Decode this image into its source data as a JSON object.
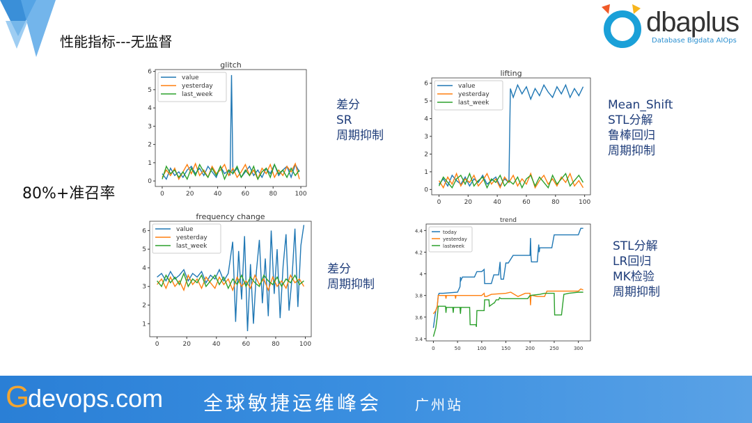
{
  "slide": {
    "title": "性能指标---无监督",
    "recall": "80%+准召率"
  },
  "logo": {
    "name": "dbaplus",
    "text": "dbaplus",
    "subtitle": "Database Bigdata AIOps"
  },
  "banner": {
    "g": "G",
    "site": "devops.com",
    "event": "全球敏捷运维峰会",
    "city": "广州站"
  },
  "methods": {
    "glitch": [
      "差分",
      "SR",
      "周期抑制"
    ],
    "lifting": [
      "Mean_Shift",
      "STL分解",
      "鲁棒回归",
      "周期抑制"
    ],
    "frequency": [
      "差分",
      "周期抑制"
    ],
    "trend": [
      "STL分解",
      "LR回归",
      "MK检验",
      "周期抑制"
    ]
  },
  "colors": {
    "blue": "#1f77b4",
    "orange": "#ff7f0e",
    "green": "#2ca02c",
    "text": "#1f3d7a",
    "banner": "#2a7fd6"
  },
  "chart_data": [
    {
      "id": "glitch",
      "type": "line",
      "title": "glitch",
      "xlim": [
        -5,
        104
      ],
      "ylim": [
        -0.3,
        6.1
      ],
      "xticks": [
        0,
        20,
        40,
        60,
        80,
        100
      ],
      "yticks": [
        0,
        1,
        2,
        3,
        4,
        5,
        6
      ],
      "legend": "top-left",
      "series": [
        {
          "name": "value",
          "color": "#1f77b4",
          "x": [
            0,
            3,
            6,
            9,
            12,
            15,
            18,
            21,
            24,
            27,
            30,
            33,
            36,
            39,
            42,
            45,
            48,
            49,
            50,
            51,
            54,
            57,
            60,
            63,
            66,
            69,
            72,
            75,
            78,
            81,
            84,
            87,
            90,
            93,
            96,
            99
          ],
          "y": [
            0.4,
            0.1,
            0.7,
            0.3,
            0.5,
            0.2,
            0.6,
            0.8,
            0.4,
            0.7,
            0.3,
            0.8,
            0.5,
            0.2,
            0.8,
            0.4,
            0.6,
            0.3,
            5.8,
            0.4,
            0.7,
            0.2,
            0.5,
            0.8,
            0.3,
            0.6,
            0.2,
            0.7,
            0.4,
            0.9,
            0.3,
            0.6,
            0.8,
            0.2,
            0.9,
            0.5
          ]
        },
        {
          "name": "yesterday",
          "color": "#ff7f0e",
          "x": [
            0,
            3,
            6,
            9,
            12,
            15,
            18,
            21,
            24,
            27,
            30,
            33,
            36,
            39,
            42,
            45,
            48,
            51,
            54,
            57,
            60,
            63,
            66,
            69,
            72,
            75,
            78,
            81,
            84,
            87,
            90,
            93,
            96,
            99
          ],
          "y": [
            0.2,
            0.6,
            0.3,
            0.7,
            0.1,
            0.5,
            0.9,
            0.4,
            0.95,
            0.3,
            0.6,
            0.2,
            0.8,
            0.4,
            0.6,
            0.9,
            0.3,
            0.7,
            0.2,
            0.5,
            0.9,
            0.3,
            0.6,
            0.1,
            0.7,
            0.4,
            0.9,
            0.2,
            0.6,
            0.3,
            0.8,
            0.5,
            0.95,
            0.1
          ]
        },
        {
          "name": "last_week",
          "color": "#2ca02c",
          "x": [
            0,
            3,
            6,
            9,
            12,
            15,
            18,
            21,
            24,
            27,
            30,
            33,
            36,
            39,
            42,
            45,
            48,
            51,
            54,
            57,
            60,
            63,
            66,
            69,
            72,
            75,
            78,
            81,
            84,
            87,
            90,
            93,
            96,
            99
          ],
          "y": [
            0.1,
            0.8,
            0.4,
            0.6,
            0.2,
            0.5,
            0.1,
            0.7,
            0.3,
            0.9,
            0.5,
            0.2,
            0.7,
            0.3,
            0.8,
            0.1,
            0.6,
            0.4,
            0.8,
            0.2,
            0.6,
            0.3,
            0.8,
            0.1,
            0.5,
            0.7,
            0.2,
            0.9,
            0.4,
            0.6,
            0.2,
            0.7,
            0.3,
            0.6
          ]
        }
      ]
    },
    {
      "id": "lifting",
      "type": "line",
      "title": "lifting",
      "xlim": [
        -5,
        104
      ],
      "ylim": [
        -0.3,
        6.3
      ],
      "xticks": [
        0,
        20,
        40,
        60,
        80,
        100
      ],
      "yticks": [
        0,
        1,
        2,
        3,
        4,
        5,
        6
      ],
      "legend": "top-left",
      "series": [
        {
          "name": "value",
          "color": "#1f77b4",
          "x": [
            0,
            3,
            6,
            9,
            12,
            15,
            18,
            21,
            24,
            27,
            30,
            33,
            36,
            39,
            42,
            45,
            48,
            49,
            51,
            54,
            57,
            60,
            63,
            66,
            69,
            72,
            75,
            78,
            81,
            84,
            87,
            90,
            93,
            96,
            99
          ],
          "y": [
            0.3,
            0.6,
            0.2,
            0.8,
            0.5,
            0.3,
            0.7,
            0.2,
            0.6,
            0.4,
            0.8,
            0.3,
            0.5,
            0.7,
            0.2,
            0.6,
            0.4,
            5.7,
            5.2,
            5.9,
            5.4,
            5.8,
            5.1,
            5.7,
            5.3,
            5.9,
            5.5,
            5.2,
            5.8,
            5.4,
            5.9,
            5.2,
            5.7,
            5.3,
            5.8
          ]
        },
        {
          "name": "yesterday",
          "color": "#ff7f0e",
          "x": [
            0,
            3,
            6,
            9,
            12,
            15,
            18,
            21,
            24,
            27,
            30,
            33,
            36,
            39,
            42,
            45,
            48,
            51,
            54,
            57,
            60,
            63,
            66,
            69,
            72,
            75,
            78,
            81,
            84,
            87,
            90,
            93,
            96,
            99
          ],
          "y": [
            0.5,
            0.1,
            0.7,
            0.3,
            0.9,
            0.2,
            0.6,
            0.4,
            0.8,
            0.2,
            0.5,
            0.9,
            0.3,
            0.6,
            0.1,
            0.7,
            0.4,
            0.8,
            0.2,
            0.6,
            0.3,
            0.9,
            0.1,
            0.5,
            0.8,
            0.3,
            0.6,
            0.2,
            0.7,
            0.4,
            0.9,
            0.2,
            0.5,
            0.1
          ]
        },
        {
          "name": "last_week",
          "color": "#2ca02c",
          "x": [
            0,
            3,
            6,
            9,
            12,
            15,
            18,
            21,
            24,
            27,
            30,
            33,
            36,
            39,
            42,
            45,
            48,
            51,
            54,
            57,
            60,
            63,
            66,
            69,
            72,
            75,
            78,
            81,
            84,
            87,
            90,
            93,
            96,
            99
          ],
          "y": [
            0.2,
            0.7,
            0.4,
            0.1,
            0.6,
            0.8,
            0.3,
            0.9,
            0.2,
            0.5,
            0.7,
            0.1,
            0.6,
            0.4,
            0.8,
            0.2,
            0.5,
            0.3,
            0.7,
            0.1,
            0.6,
            0.8,
            0.2,
            0.7,
            0.4,
            0.1,
            0.8,
            0.3,
            0.6,
            0.9,
            0.2,
            0.5,
            0.8,
            0.4
          ]
        }
      ]
    },
    {
      "id": "frequency",
      "type": "line",
      "title": "frequency change",
      "xlim": [
        -5,
        104
      ],
      "ylim": [
        0.3,
        6.5
      ],
      "xticks": [
        0,
        20,
        40,
        60,
        80,
        100
      ],
      "yticks": [
        1,
        2,
        3,
        4,
        5,
        6
      ],
      "legend": "top-left",
      "series": [
        {
          "name": "value",
          "color": "#1f77b4",
          "x": [
            0,
            3,
            6,
            9,
            12,
            15,
            18,
            21,
            24,
            27,
            30,
            33,
            36,
            39,
            42,
            45,
            48,
            51,
            53,
            55,
            57,
            59,
            61,
            63,
            65,
            67,
            69,
            71,
            73,
            75,
            77,
            79,
            81,
            83,
            85,
            87,
            89,
            91,
            93,
            95,
            97,
            99
          ],
          "y": [
            3.5,
            3.7,
            3.3,
            3.8,
            3.4,
            3.6,
            3.9,
            3.3,
            3.7,
            3.5,
            3.8,
            3.2,
            3.6,
            3.4,
            3.9,
            3.3,
            3.7,
            5.4,
            1.1,
            4.9,
            2.3,
            5.7,
            0.6,
            4.2,
            1.0,
            3.8,
            5.5,
            2.1,
            4.5,
            1.4,
            6.0,
            2.6,
            5.0,
            1.3,
            4.1,
            5.8,
            1.7,
            3.4,
            6.1,
            1.9,
            5.2,
            6.3
          ]
        },
        {
          "name": "yesterday",
          "color": "#ff7f0e",
          "x": [
            0,
            3,
            6,
            9,
            12,
            15,
            18,
            21,
            24,
            27,
            30,
            33,
            36,
            39,
            42,
            45,
            48,
            51,
            54,
            57,
            60,
            63,
            66,
            69,
            72,
            75,
            78,
            81,
            84,
            87,
            90,
            93,
            96,
            99
          ],
          "y": [
            3.1,
            3.4,
            2.9,
            3.5,
            3.0,
            3.3,
            2.8,
            3.6,
            3.1,
            3.4,
            2.9,
            3.5,
            3.2,
            2.9,
            3.5,
            3.1,
            3.4,
            2.8,
            3.5,
            3.0,
            3.3,
            2.9,
            3.6,
            3.1,
            3.4,
            2.8,
            3.5,
            3.0,
            3.3,
            2.9,
            3.6,
            3.2,
            3.4,
            3.0
          ]
        },
        {
          "name": "last_week",
          "color": "#2ca02c",
          "x": [
            0,
            3,
            6,
            9,
            12,
            15,
            18,
            21,
            24,
            27,
            30,
            33,
            36,
            39,
            42,
            45,
            48,
            51,
            54,
            57,
            60,
            63,
            66,
            69,
            72,
            75,
            78,
            81,
            84,
            87,
            90,
            93,
            96,
            99
          ],
          "y": [
            3.3,
            3.0,
            3.6,
            3.2,
            3.5,
            3.1,
            3.7,
            3.0,
            3.4,
            3.2,
            3.6,
            3.0,
            3.3,
            3.6,
            3.1,
            3.5,
            2.9,
            3.4,
            3.1,
            3.6,
            3.0,
            3.5,
            3.2,
            3.0,
            3.6,
            3.3,
            3.1,
            3.5,
            3.0,
            3.4,
            3.2,
            3.6,
            3.1,
            3.3
          ]
        }
      ]
    },
    {
      "id": "trend",
      "type": "line",
      "title": "trend",
      "xlim": [
        -15,
        325
      ],
      "ylim": [
        3.38,
        4.46
      ],
      "xticks": [
        0,
        50,
        100,
        150,
        200,
        250,
        300
      ],
      "yticks": [
        3.4,
        3.6,
        3.8,
        4.0,
        4.2,
        4.4
      ],
      "legend": "top-left",
      "series": [
        {
          "name": "today",
          "color": "#1f77b4",
          "x": [
            0,
            3,
            5,
            8,
            10,
            12,
            20,
            50,
            55,
            56,
            57,
            60,
            85,
            90,
            100,
            105,
            106,
            120,
            125,
            135,
            138,
            139,
            140,
            142,
            145,
            150,
            155,
            165,
            170,
            195,
            200,
            201,
            202,
            203,
            215,
            218,
            219,
            220,
            235,
            245,
            250,
            300,
            305,
            310
          ],
          "y": [
            3.5,
            3.6,
            3.66,
            3.7,
            3.8,
            3.82,
            3.82,
            3.83,
            3.88,
            3.97,
            3.94,
            3.97,
            3.97,
            4.02,
            4.02,
            4.04,
            3.91,
            3.91,
            3.99,
            3.99,
            4.11,
            4.0,
            3.95,
            3.95,
            3.95,
            4.1,
            4.1,
            4.17,
            4.17,
            4.17,
            4.17,
            4.33,
            4.16,
            4.11,
            4.11,
            4.27,
            4.2,
            4.24,
            4.24,
            4.24,
            4.36,
            4.36,
            4.42,
            4.42
          ]
        },
        {
          "name": "yesterday",
          "color": "#ff7f0e",
          "x": [
            0,
            5,
            8,
            10,
            12,
            25,
            26,
            27,
            45,
            46,
            47,
            100,
            105,
            106,
            110,
            120,
            150,
            160,
            175,
            190,
            200,
            201,
            202,
            205,
            215,
            230,
            235,
            280,
            300,
            305,
            310
          ],
          "y": [
            3.63,
            3.66,
            3.7,
            3.8,
            3.8,
            3.8,
            3.77,
            3.8,
            3.8,
            3.77,
            3.8,
            3.8,
            3.82,
            3.79,
            3.79,
            3.81,
            3.82,
            3.83,
            3.79,
            3.82,
            3.82,
            3.71,
            3.8,
            3.8,
            3.79,
            3.79,
            3.84,
            3.84,
            3.84,
            3.86,
            3.85
          ]
        },
        {
          "name": "lastweek",
          "color": "#2ca02c",
          "x": [
            0,
            5,
            8,
            10,
            25,
            26,
            27,
            40,
            41,
            42,
            55,
            56,
            57,
            75,
            76,
            80,
            88,
            89,
            90,
            105,
            106,
            115,
            116,
            125,
            126,
            130,
            135,
            137,
            140,
            195,
            200,
            220,
            230,
            250,
            251,
            265,
            270,
            280,
            300,
            310
          ],
          "y": [
            3.42,
            3.5,
            3.6,
            3.7,
            3.7,
            3.64,
            3.69,
            3.69,
            3.64,
            3.69,
            3.69,
            3.63,
            3.69,
            3.69,
            3.53,
            3.53,
            3.53,
            3.51,
            3.66,
            3.66,
            3.76,
            3.76,
            3.7,
            3.73,
            3.73,
            3.76,
            3.76,
            3.78,
            3.77,
            3.77,
            3.8,
            3.81,
            3.82,
            3.82,
            3.62,
            3.62,
            3.81,
            3.82,
            3.83,
            3.83
          ]
        }
      ]
    }
  ]
}
